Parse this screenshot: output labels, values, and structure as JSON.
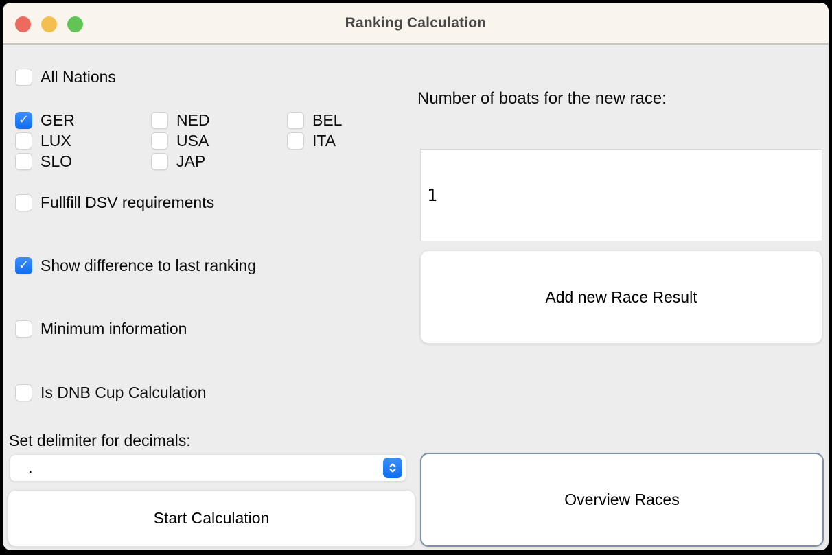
{
  "window": {
    "title": "Ranking Calculation",
    "traffic_lights": [
      "close",
      "minimize",
      "maximize"
    ],
    "colors": {
      "titlebar_bg": "#f9f4ec",
      "body_bg": "#ededed",
      "checkbox_checked_blue": "#1b7ff6",
      "focus_border": "#7e90a8",
      "traffic_red": "#ec6a5e",
      "traffic_yellow": "#f4bf4f",
      "traffic_green": "#61c455"
    }
  },
  "checkboxes": {
    "all_nations": {
      "label": "All Nations",
      "checked": false
    },
    "nations": [
      {
        "label": "GER",
        "checked": true
      },
      {
        "label": "NED",
        "checked": false
      },
      {
        "label": "BEL",
        "checked": false
      },
      {
        "label": "LUX",
        "checked": false
      },
      {
        "label": "USA",
        "checked": false
      },
      {
        "label": "ITA",
        "checked": false
      },
      {
        "label": "SLO",
        "checked": false
      },
      {
        "label": "JAP",
        "checked": false
      }
    ],
    "dsv": {
      "label": "Fullfill DSV requirements",
      "checked": false
    },
    "diff": {
      "label": "Show difference to last ranking",
      "checked": true
    },
    "min_info": {
      "label": "Minimum information",
      "checked": false
    },
    "dnb": {
      "label": "Is DNB Cup Calculation",
      "checked": false
    },
    "checkmark_glyph": "✓"
  },
  "delimiter": {
    "label": "Set delimiter for decimals:",
    "value": "."
  },
  "boats": {
    "label": "Number of boats for the new race:",
    "value": "1"
  },
  "buttons": {
    "start": "Start Calculation",
    "add_race": "Add new Race Result",
    "overview": "Overview Races"
  }
}
